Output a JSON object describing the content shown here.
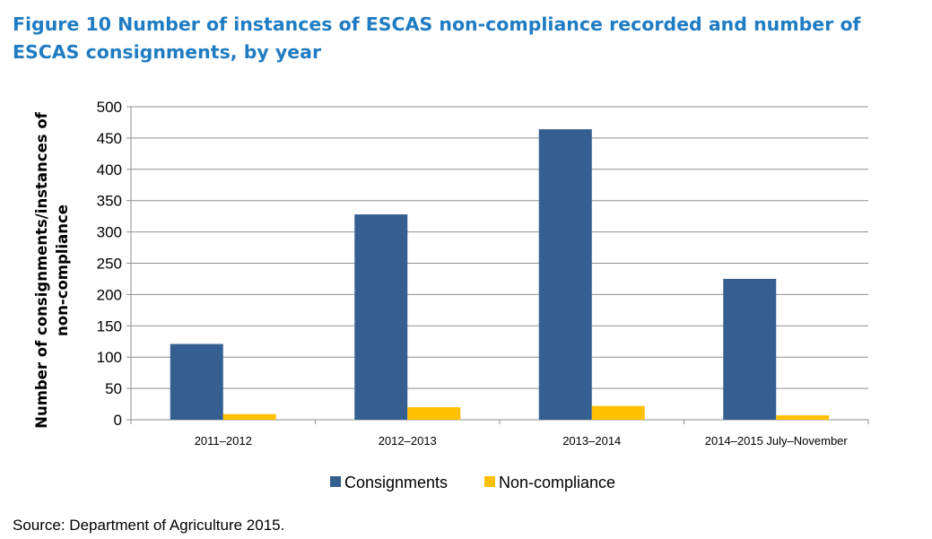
{
  "figure": {
    "title": "Figure 10 Number of instances of ESCAS non-compliance recorded and number of ESCAS consignments, by year",
    "source": "Source: Department of Agriculture 2015."
  },
  "chart_data": {
    "type": "bar",
    "title": "",
    "xlabel": "",
    "ylabel": "Number of consignments/instances of non-compliance",
    "ylim": [
      0,
      500
    ],
    "yticks": [
      0,
      50,
      100,
      150,
      200,
      250,
      300,
      350,
      400,
      450,
      500
    ],
    "grid": true,
    "legend_position": "bottom",
    "categories": [
      "2011–2012",
      "2012–2013",
      "2013–2014",
      "2014–2015 July–November"
    ],
    "series": [
      {
        "name": "Consignments",
        "color": "#355e91",
        "values": [
          121,
          328,
          464,
          225
        ]
      },
      {
        "name": "Non-compliance",
        "color": "#ffc000",
        "values": [
          9,
          20,
          22,
          7
        ]
      }
    ]
  }
}
